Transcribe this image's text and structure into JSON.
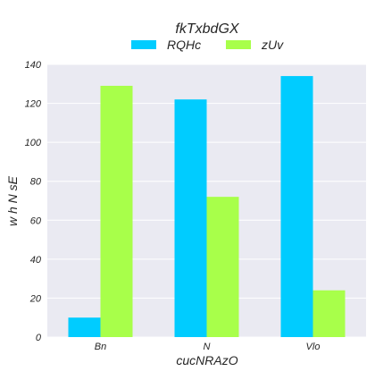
{
  "chart_data": {
    "type": "bar",
    "title": "fkTxbdGX",
    "xlabel": "cucNRAzO",
    "ylabel": "w h N sE",
    "categories": [
      "Bn",
      "N",
      "Vlo"
    ],
    "series": [
      {
        "name": "RQHc",
        "color": "#00ccff",
        "values": [
          10,
          122,
          134
        ]
      },
      {
        "name": "zUv",
        "color": "#a8ff4a",
        "values": [
          129,
          72,
          24
        ]
      }
    ],
    "ylim": [
      0,
      140
    ],
    "yticks": [
      0,
      20,
      40,
      60,
      80,
      100,
      120,
      140
    ],
    "grid": true,
    "legend_position": "top-center",
    "plot_background": "#eaeaf2",
    "grid_color": "#ffffff"
  }
}
